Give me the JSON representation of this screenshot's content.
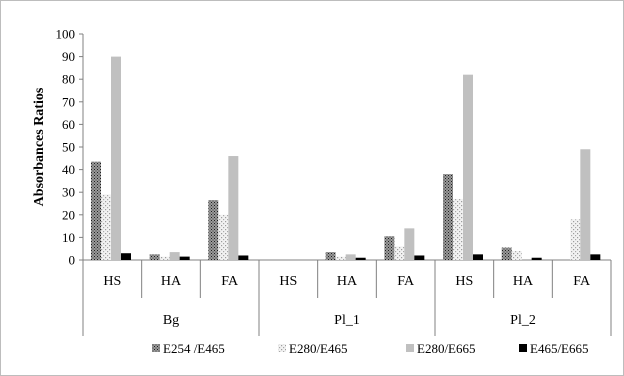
{
  "chart_data": {
    "type": "bar",
    "ylabel": "Absorbances Ratios",
    "ylim": [
      0,
      100
    ],
    "yticks": [
      0,
      10,
      20,
      30,
      40,
      50,
      60,
      70,
      80,
      90,
      100
    ],
    "grid": false,
    "legend_position": "bottom",
    "groups": [
      {
        "label": "Bg",
        "categories": [
          "HS",
          "HA",
          "FA"
        ]
      },
      {
        "label": "Pl_1",
        "categories": [
          "HS",
          "HA",
          "FA"
        ]
      },
      {
        "label": "Pl_2",
        "categories": [
          "HS",
          "HA",
          "FA"
        ]
      }
    ],
    "categories": [
      "HS",
      "HA",
      "FA",
      "HS",
      "HA",
      "FA",
      "HS",
      "HA",
      "FA"
    ],
    "series": [
      {
        "name": "E254 /E465",
        "pattern": "dots-dark",
        "color": "#555555",
        "values": [
          43.5,
          2.5,
          26.5,
          0,
          3.5,
          10.5,
          38,
          5.5,
          0
        ]
      },
      {
        "name": "E280/E465",
        "pattern": "dots-light",
        "color": "#bdbdbd",
        "values": [
          29,
          1.5,
          20,
          0,
          1.5,
          6,
          27,
          4,
          18
        ]
      },
      {
        "name": "E280/E665",
        "pattern": "solid",
        "color": "#c0c0c0",
        "values": [
          90,
          3.5,
          46,
          0,
          2.5,
          14,
          82,
          0,
          49
        ]
      },
      {
        "name": "E465/E665",
        "pattern": "solid",
        "color": "#000000",
        "values": [
          3,
          1.5,
          2,
          0,
          1,
          2,
          2.5,
          1,
          2.5
        ]
      }
    ]
  }
}
